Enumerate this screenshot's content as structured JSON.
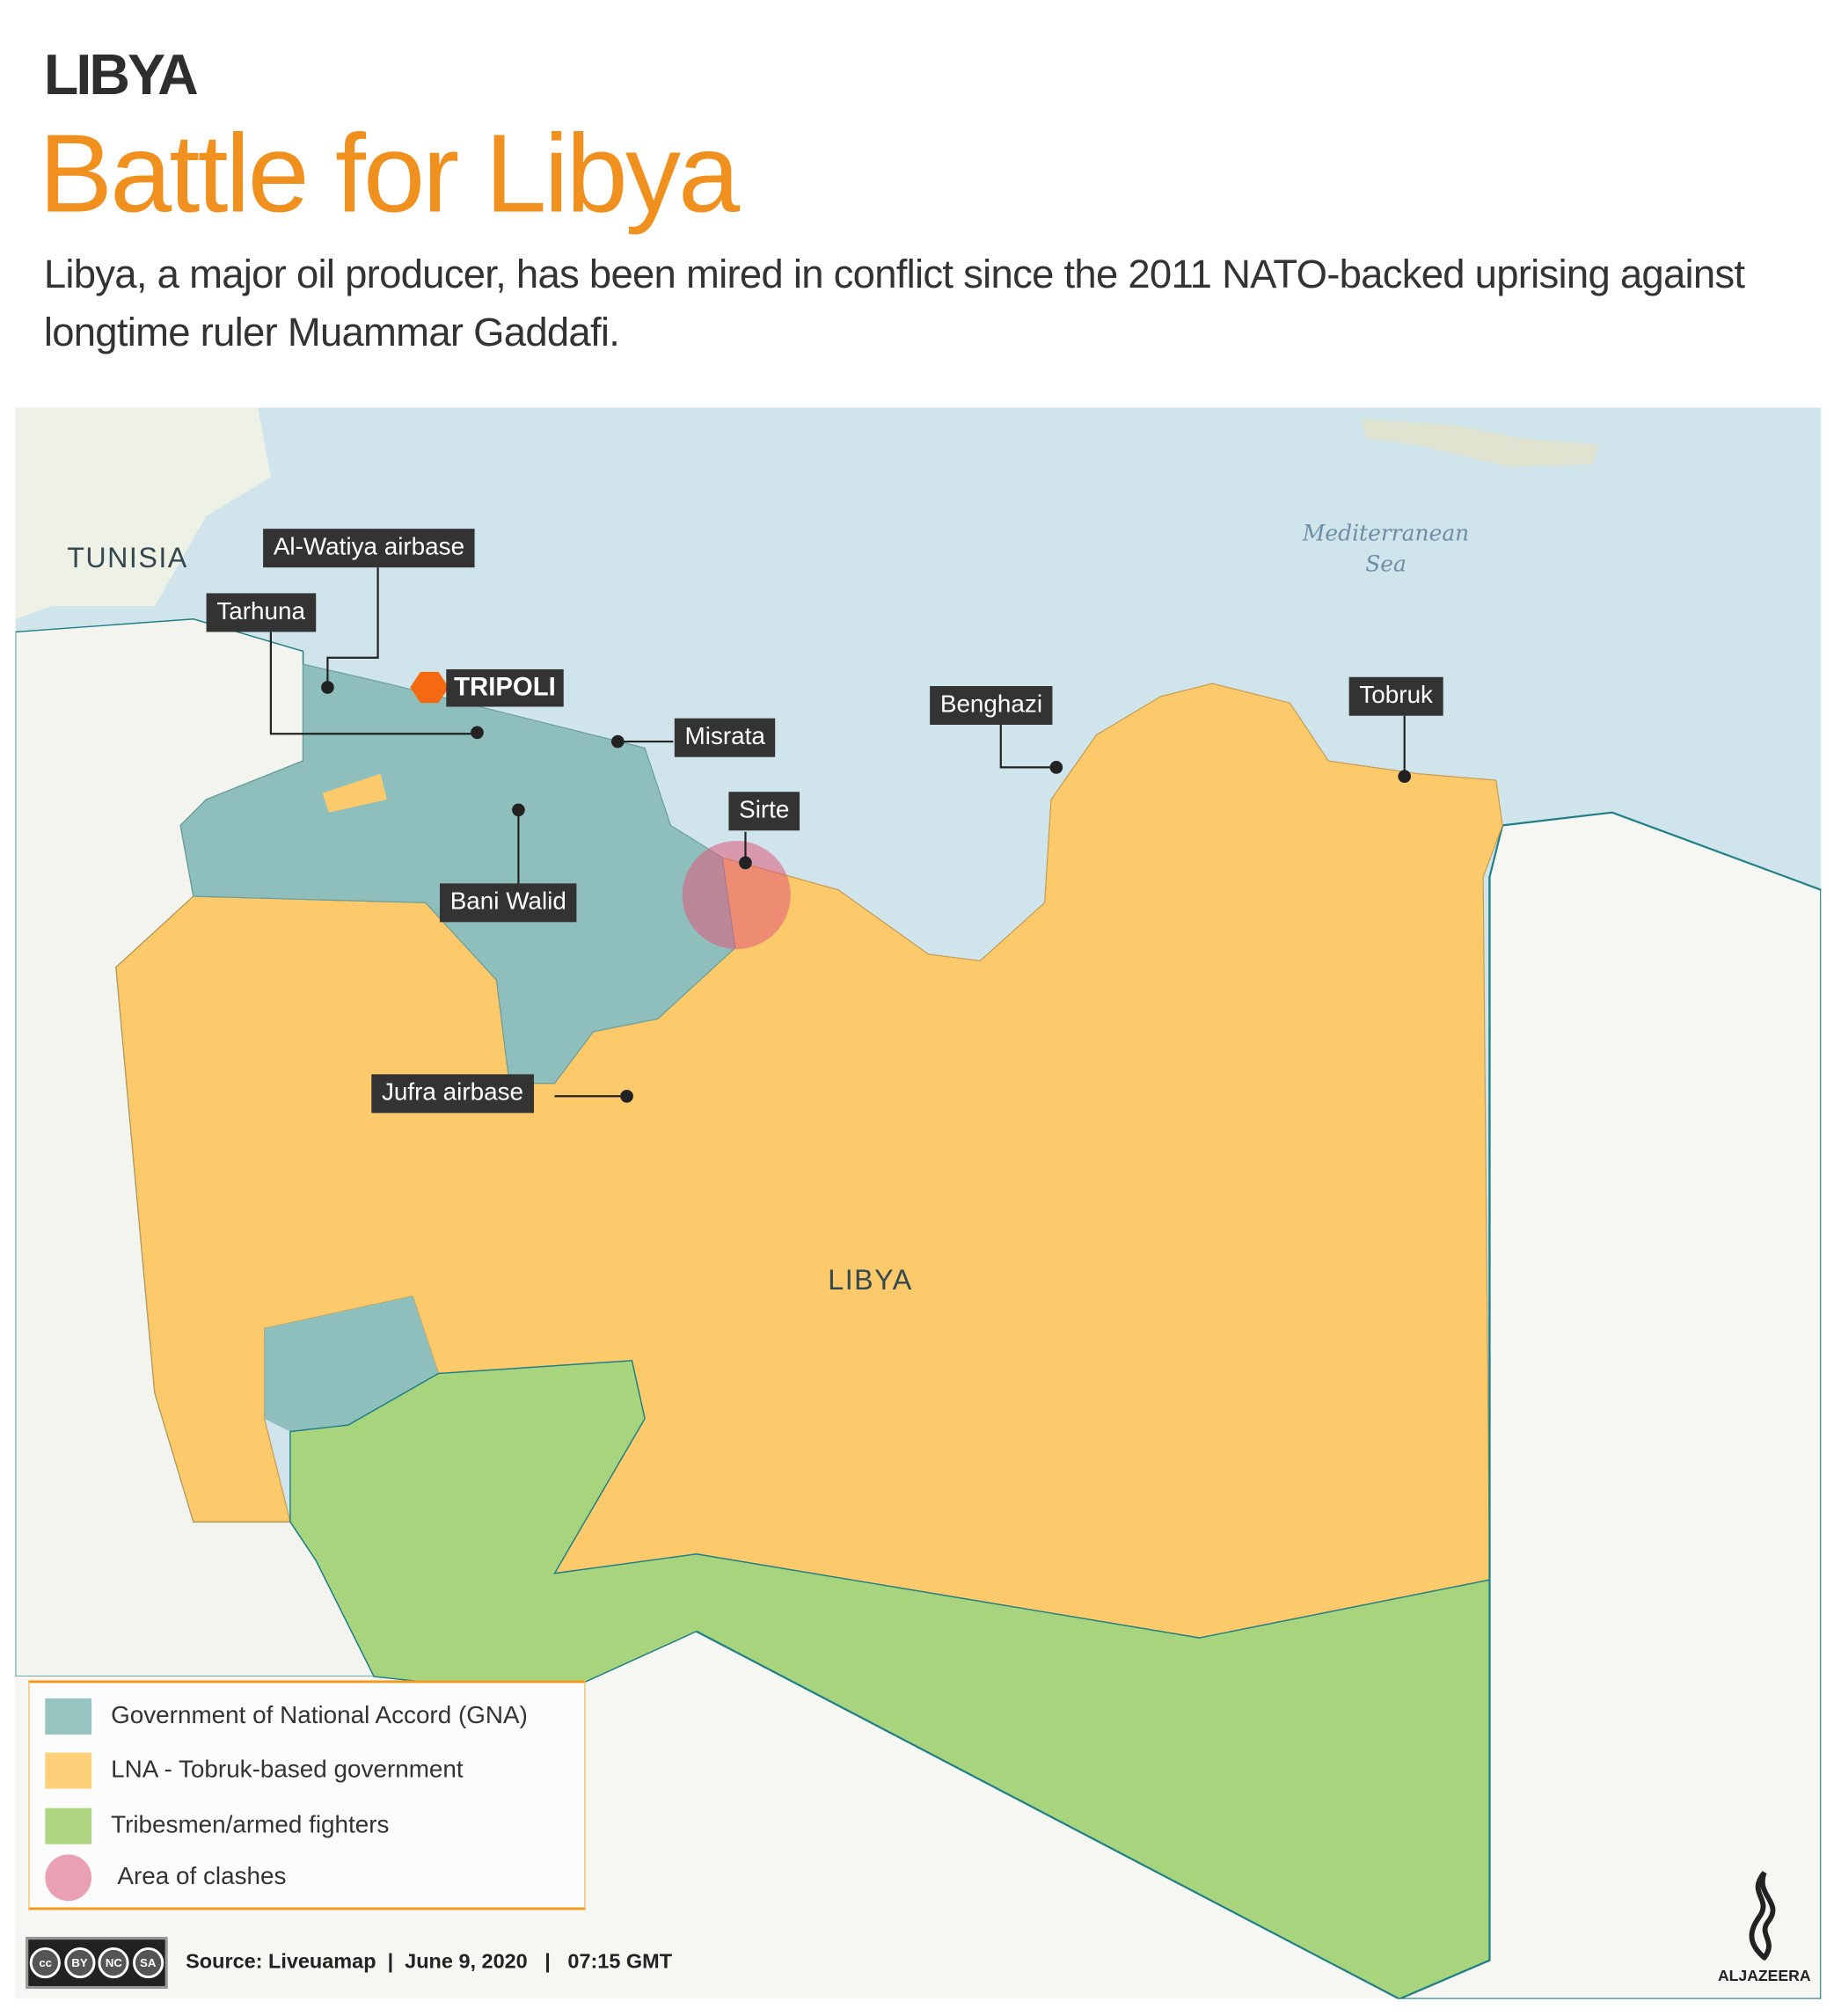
{
  "header": {
    "kicker": "LIBYA",
    "title": "Battle for Libya",
    "subtitle": "Libya, a major oil producer, has been mired in conflict since the 2011  NATO-backed uprising against longtime ruler Muammar Gaddafi."
  },
  "map": {
    "country_labels": {
      "tunisia": "TUNISIA",
      "libya": "LIBYA"
    },
    "sea_label": [
      "Mediterranean",
      "Sea"
    ],
    "capital": "TRIPOLI",
    "places": [
      {
        "name": "Al-Watiya airbase"
      },
      {
        "name": "Tarhuna"
      },
      {
        "name": "Misrata"
      },
      {
        "name": "Sirte"
      },
      {
        "name": "Bani Walid"
      },
      {
        "name": "Benghazi"
      },
      {
        "name": "Tobruk"
      },
      {
        "name": "Jufra airbase"
      }
    ],
    "colors": {
      "gna": "#8fbfbd",
      "lna": "#fcc96b",
      "tribes": "#a8d47e",
      "clashes": "#e88aa0",
      "capital_marker": "#f56a10",
      "sea": "#cfe4eb",
      "land": "#f3f4ef"
    }
  },
  "legend": {
    "items": [
      {
        "label": "Government of National Accord (GNA)",
        "color": "#97c3c1"
      },
      {
        "label": "LNA - Tobruk-based government",
        "color": "#fdd07a"
      },
      {
        "label": "Tribesmen/armed fighters",
        "color": "#aed683"
      },
      {
        "label": "Area of clashes",
        "color": "#e9a0b3"
      }
    ]
  },
  "footer": {
    "license": [
      "BY",
      "NC",
      "SA"
    ],
    "source": "Source: Liveuamap  |  June 9, 2020   |   07:15 GMT",
    "brand": "ALJAZEERA"
  }
}
